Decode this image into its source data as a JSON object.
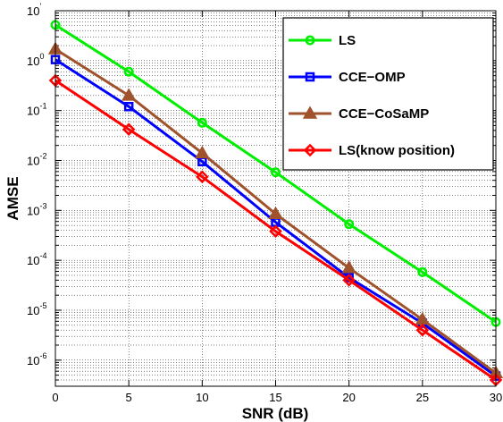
{
  "chart_data": {
    "type": "line",
    "xlabel": "SNR (dB)",
    "ylabel": "AMSE",
    "xlim": [
      0,
      30
    ],
    "ylim": [
      3e-07,
      10
    ],
    "y_scale": "log",
    "grid": true,
    "legend_position": "top-right",
    "x_ticks": [
      "0",
      "5",
      "10",
      "15",
      "20",
      "25",
      "30"
    ],
    "y_ticks": [
      {
        "base": "10",
        "exp": "'"
      },
      {
        "base": "10",
        "exp": "0"
      },
      {
        "base": "10",
        "exp": "-1"
      },
      {
        "base": "10",
        "exp": "-2"
      },
      {
        "base": "10",
        "exp": "-3"
      },
      {
        "base": "10",
        "exp": "-4"
      },
      {
        "base": "10",
        "exp": "-5"
      },
      {
        "base": "10",
        "exp": "-6"
      }
    ],
    "x": [
      0,
      5,
      10,
      15,
      20,
      25,
      30
    ],
    "series": [
      {
        "name": "LS",
        "color": "#00ee00",
        "marker": "circle",
        "values": [
          5.2,
          0.6,
          0.057,
          0.0058,
          0.00053,
          5.8e-05,
          5.8e-06
        ]
      },
      {
        "name": "CCE−OMP",
        "color": "#0000ff",
        "marker": "square",
        "values": [
          1.05,
          0.12,
          0.0095,
          0.00058,
          4.5e-05,
          5.5e-06,
          4.8e-07
        ]
      },
      {
        "name": "CCE−CoSaMP",
        "color": "#a0522d",
        "marker": "triangle",
        "values": [
          1.7,
          0.2,
          0.014,
          0.00085,
          7e-05,
          6.5e-06,
          5.5e-07
        ]
      },
      {
        "name": "LS(know position)",
        "color": "#ff0000",
        "marker": "diamond",
        "values": [
          0.4,
          0.042,
          0.0047,
          0.00038,
          4e-05,
          4e-06,
          4e-07
        ]
      }
    ]
  }
}
